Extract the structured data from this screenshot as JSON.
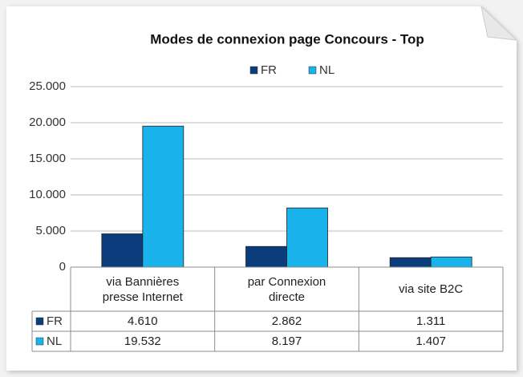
{
  "chart_data": {
    "type": "bar",
    "title": "Modes de connexion page Concours - Top",
    "categories": [
      "via Bannières presse Internet",
      "par Connexion directe",
      "via site B2C"
    ],
    "series": [
      {
        "name": "FR",
        "color": "#0b3d7d",
        "values": [
          4610,
          2862,
          1311
        ],
        "value_labels": [
          "4.610",
          "2.862",
          "1.311"
        ]
      },
      {
        "name": "NL",
        "color": "#19b2ea",
        "values": [
          19532,
          8197,
          1407
        ],
        "value_labels": [
          "19.532",
          "8.197",
          "1.407"
        ]
      }
    ],
    "ylim": [
      0,
      25000
    ],
    "yticks": [
      0,
      {
        "value": 5000,
        "label": "5.000"
      },
      {
        "value": 10000,
        "label": "10.000"
      },
      {
        "value": 15000,
        "label": "15.000"
      },
      {
        "value": 20000,
        "label": "20.000"
      },
      {
        "value": 25000,
        "label": "25.000"
      }
    ],
    "grid": true,
    "legend": "top"
  }
}
